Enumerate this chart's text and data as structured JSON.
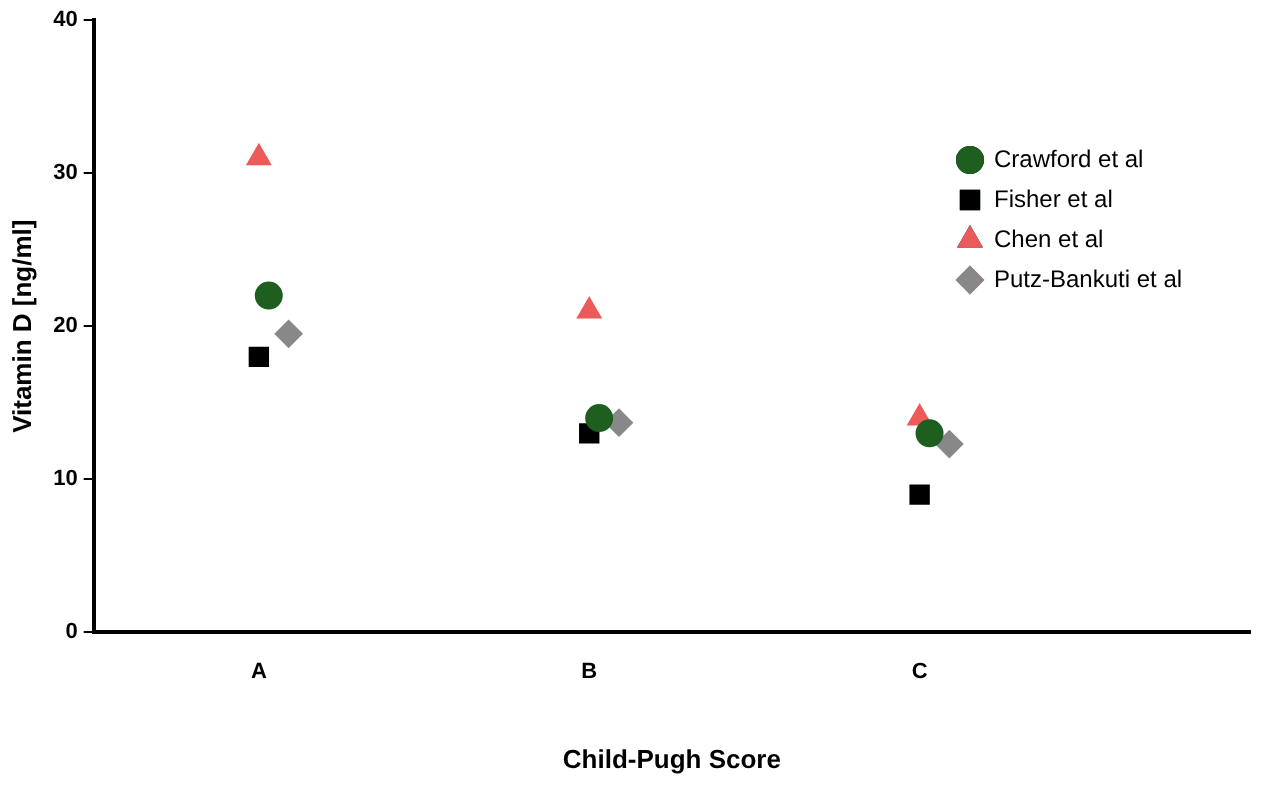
{
  "chart_data": {
    "type": "scatter",
    "xlabel": "Child-Pugh Score",
    "ylabel": "Vitamin D [ng/ml]",
    "categories": [
      "A",
      "B",
      "C"
    ],
    "series": [
      {
        "name": "Crawford et al",
        "color": "#1e5e1e",
        "marker": "circle",
        "values": [
          22,
          14,
          13
        ]
      },
      {
        "name": "Fisher et al",
        "color": "#000000",
        "marker": "square",
        "values": [
          18,
          13,
          9
        ]
      },
      {
        "name": "Chen et al",
        "color": "#ec5a5a",
        "marker": "triangle",
        "values": [
          31,
          21,
          14
        ]
      },
      {
        "name": "Putz-Bankuti et al",
        "color": "#888888",
        "marker": "diamond",
        "values": [
          19.5,
          13.7,
          12.3
        ]
      }
    ],
    "ylim": [
      0,
      40
    ],
    "yticks": [
      0,
      10,
      20,
      30,
      40
    ],
    "grid": false,
    "legend": "top right"
  }
}
